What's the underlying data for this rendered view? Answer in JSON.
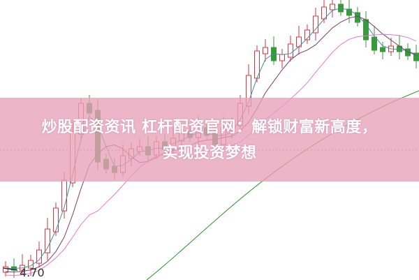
{
  "title": "炒股配资资讯 杠杆配资官网：解锁财富新高度，实现投资梦想",
  "title_line1": "炒股配资资讯 杠杆配资官网：解锁财富新高度，",
  "title_line2": "实现投资梦想",
  "price_label": "4.70",
  "colors": {
    "up": "#d9363e",
    "down": "#3a9a3a",
    "banner": "#e8a0b9",
    "ma_short": "#3b8fa0",
    "ma_mid": "#7a3b6a",
    "ma_long": "#e07ad0",
    "ma_longest": "#2e8b2e"
  }
}
